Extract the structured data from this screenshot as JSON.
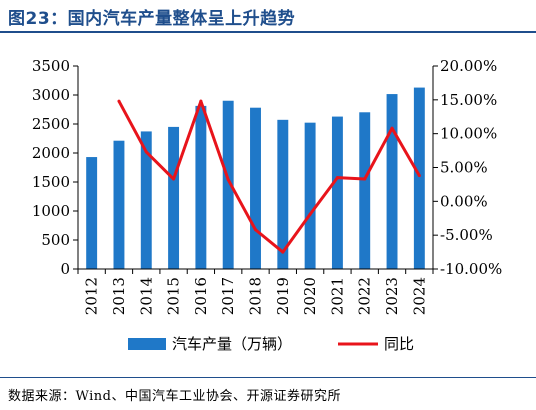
{
  "header": {
    "title": "图23：国内汽车产量整体呈上升趋势"
  },
  "footer": {
    "source": "数据来源：Wind、中国汽车工业协会、开源证券研究所"
  },
  "colors": {
    "title": "#1f4e8c",
    "bar": "#1f78c8",
    "line": "#e8141b"
  },
  "chart_data": {
    "type": "bar+line",
    "categories": [
      "2012",
      "2013",
      "2014",
      "2015",
      "2016",
      "2017",
      "2018",
      "2019",
      "2020",
      "2021",
      "2022",
      "2023",
      "2024"
    ],
    "series": [
      {
        "name": "汽车产量（万辆）",
        "type": "bar",
        "axis": "left",
        "values": [
          1930,
          2212,
          2372,
          2450,
          2812,
          2901,
          2781,
          2572,
          2523,
          2628,
          2702,
          3016,
          3128
        ]
      },
      {
        "name": "同比",
        "type": "line",
        "axis": "right",
        "values": [
          null,
          14.8,
          7.3,
          3.3,
          14.8,
          3.2,
          -4.2,
          -7.5,
          -1.9,
          3.5,
          3.3,
          10.8,
          3.8
        ]
      }
    ],
    "left_axis": {
      "ylim": [
        0,
        3500
      ],
      "ticks": [
        "0",
        "500",
        "1000",
        "1500",
        "2000",
        "2500",
        "3000",
        "3500"
      ]
    },
    "right_axis": {
      "ylim": [
        -10,
        20
      ],
      "ticks": [
        "-10.00%",
        "-5.00%",
        "0.00%",
        "5.00%",
        "10.00%",
        "15.00%",
        "20.00%"
      ]
    },
    "legend": {
      "placement": "bottom"
    },
    "grid": false
  }
}
